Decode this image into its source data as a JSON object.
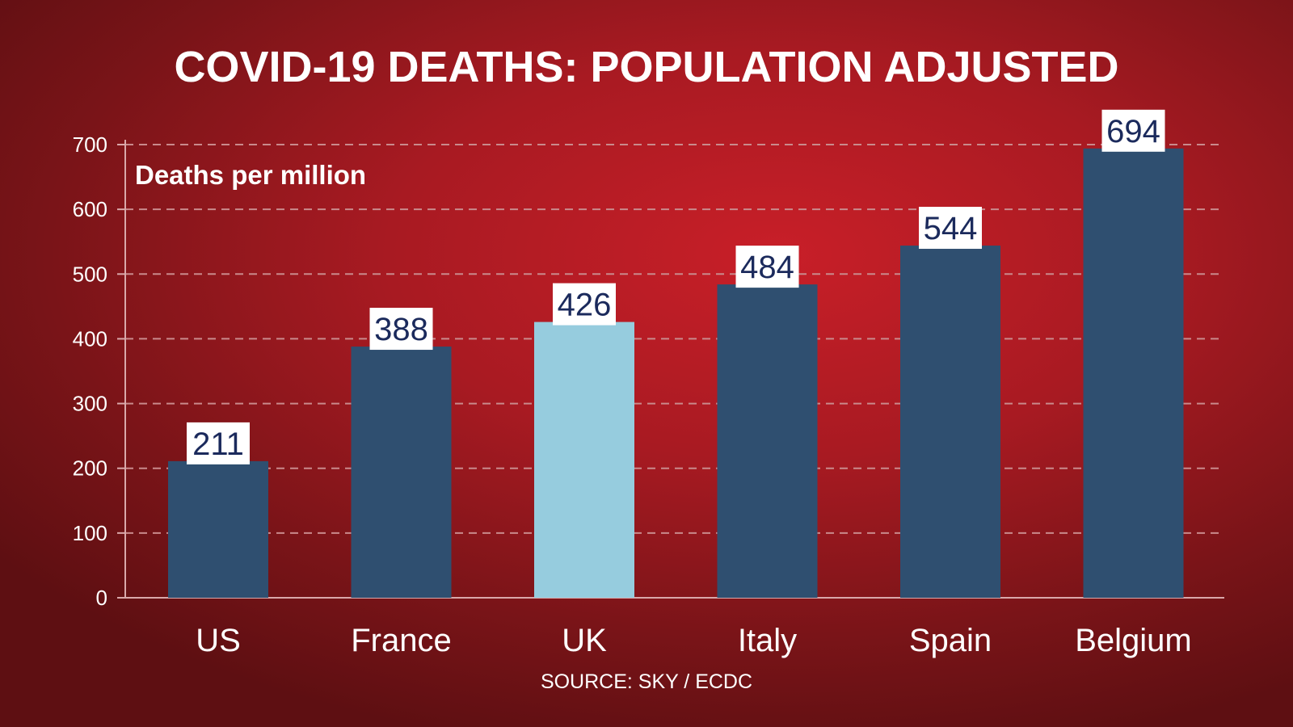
{
  "chart_data": {
    "type": "bar",
    "title": "COVID-19 DEATHS: POPULATION ADJUSTED",
    "ylabel": "Deaths per million",
    "xlabel": "",
    "categories": [
      "US",
      "France",
      "UK",
      "Italy",
      "Spain",
      "Belgium"
    ],
    "values": [
      211,
      388,
      426,
      484,
      544,
      694
    ],
    "value_labels": [
      "211",
      "388",
      "426",
      "484",
      "544",
      "694"
    ],
    "ylim": [
      0,
      700
    ],
    "yticks": [
      "0",
      "100",
      "200",
      "300",
      "400",
      "500",
      "600",
      "700"
    ],
    "ytick_values": [
      0,
      100,
      200,
      300,
      400,
      500,
      600,
      700
    ],
    "grid": true,
    "highlight_category": "UK",
    "source": "SOURCE: SKY / ECDC"
  },
  "colors": {
    "bar": "#2f4f70",
    "highlight": "#96ccde",
    "label_text": "#1b2a5c",
    "label_box": "#ffffff",
    "text": "#ffffff",
    "grid": "#c98a8c",
    "axis": "#d9a8aa"
  }
}
